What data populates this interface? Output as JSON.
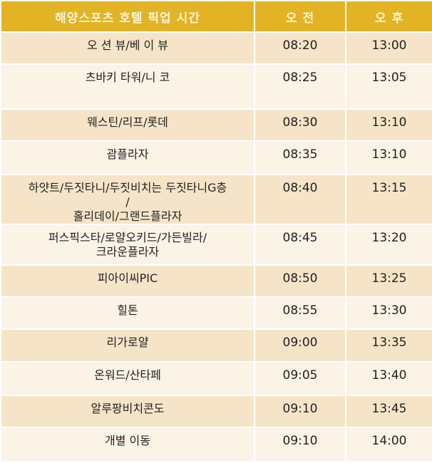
{
  "header": {
    "title": "해양스포츠 호텔 픽업 시간",
    "am": "오 전",
    "pm": "오 후"
  },
  "rows": [
    {
      "hotel": "오 션 뷰/베 이 뷰",
      "am": "08:20",
      "pm": "13:00"
    },
    {
      "hotel": "츠바키 타워/니 코",
      "am": "08:25",
      "pm": "13:05"
    },
    {
      "hotel": "웨스틴/리프/롯데",
      "am": "08:30",
      "pm": "13:10"
    },
    {
      "hotel": "괌플라자",
      "am": "08:35",
      "pm": "13:10"
    },
    {
      "hotel": "하얏트/두짓타니/두짓비치는 두짓타니G층\n/\n홀리데이/그랜드플라자",
      "am": "08:40",
      "pm": "13:15"
    },
    {
      "hotel": "퍼스픽스타/로얄오키드/가든빌라/\n크라운플라자",
      "am": "08:45",
      "pm": "13:20"
    },
    {
      "hotel": "피아이씨PIC",
      "am": "08:50",
      "pm": "13:25"
    },
    {
      "hotel": "힐톤",
      "am": "08:55",
      "pm": "13:30"
    },
    {
      "hotel": "리가로얄",
      "am": "09:00",
      "pm": "13:35"
    },
    {
      "hotel": "온워드/산타페",
      "am": "09:05",
      "pm": "13:40"
    },
    {
      "hotel": "알루팡비치콘도",
      "am": "09:10",
      "pm": "13:45"
    },
    {
      "hotel": "개별 이동",
      "am": "09:10",
      "pm": "14:00"
    }
  ],
  "colors": {
    "header": "#e2b425",
    "row_dark": "#f5e4c7",
    "row_light": "#fbf3e6"
  }
}
